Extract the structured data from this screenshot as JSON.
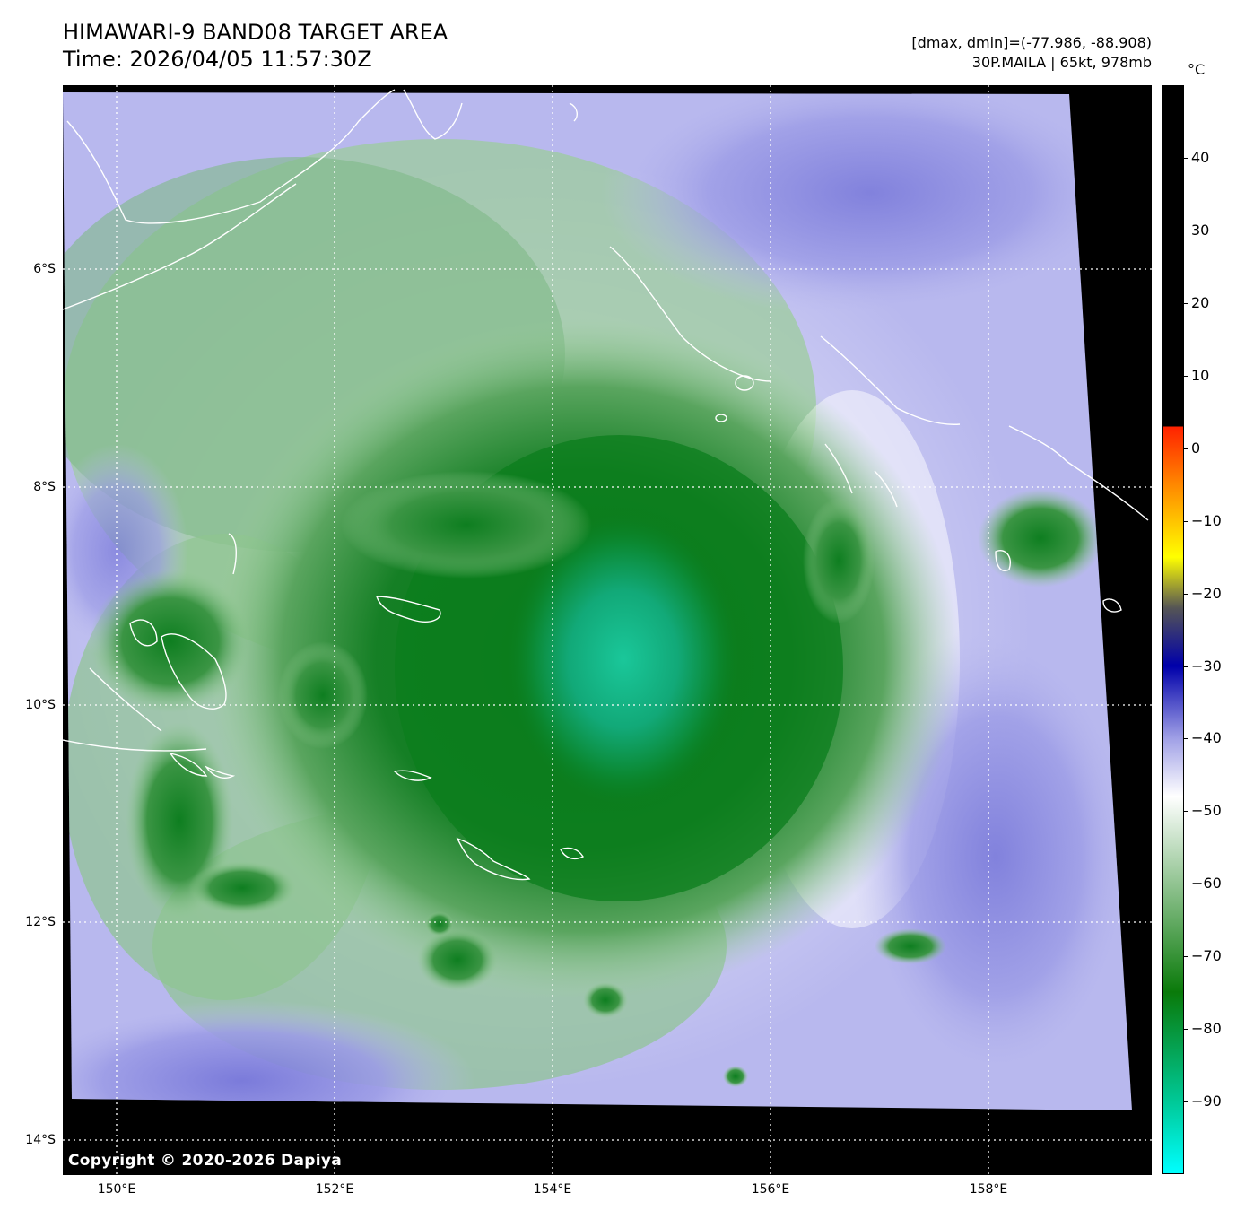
{
  "header": {
    "title": "HIMAWARI-9 BAND08 TARGET AREA",
    "time": "Time: 2026/04/05 11:57:30Z",
    "range": "[dmax, dmin]=(-77.986, -88.908)",
    "storm": "30P.MAILA | 65kt, 978mb"
  },
  "map": {
    "copyright": "Copyright © 2020-2026 Dapiya",
    "lat_labels": [
      "6°S",
      "8°S",
      "10°S",
      "12°S",
      "14°S"
    ],
    "lon_labels": [
      "150°E",
      "152°E",
      "154°E",
      "156°E",
      "158°E"
    ],
    "lat_values": [
      -6,
      -8,
      -10,
      -12,
      -14
    ],
    "lon_values": [
      150,
      152,
      154,
      156,
      158
    ],
    "grid": "dotted-white"
  },
  "colorbar": {
    "unit": "°C",
    "tick_labels": [
      "40",
      "30",
      "20",
      "10",
      "0",
      "−10",
      "−20",
      "−30",
      "−40",
      "−50",
      "−60",
      "−70",
      "−80",
      "−90"
    ],
    "tick_values": [
      40,
      30,
      20,
      10,
      0,
      -10,
      -20,
      -30,
      -40,
      -50,
      -60,
      -70,
      -80,
      -90
    ],
    "min": -100,
    "max": 50,
    "colors": {
      "warm": "#000000",
      "red": "#ff2200",
      "orange": "#ff8800",
      "yellow": "#ffff00",
      "grey": "#555555",
      "blue": "#0000aa",
      "lavender": "#a0a0e6",
      "white": "#ffffff",
      "green": "#0a7a0a",
      "teal": "#00c896",
      "cyan": "#00ffff"
    }
  }
}
